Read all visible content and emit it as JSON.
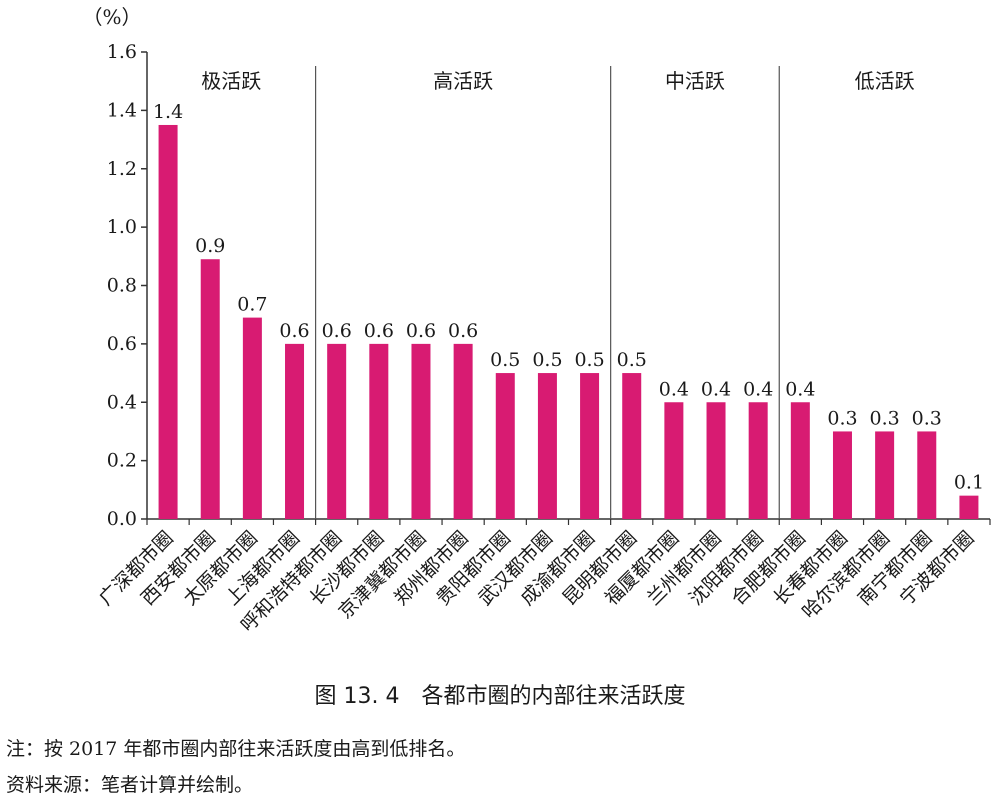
{
  "chart_data": {
    "type": "bar",
    "unit_label": "（%）",
    "ylim": [
      0,
      1.6
    ],
    "yticks": [
      "0.0",
      "0.2",
      "0.4",
      "0.6",
      "0.8",
      "1.0",
      "1.2",
      "1.4",
      "1.6"
    ],
    "categories": [
      "广深都市圈",
      "西安都市圈",
      "太原都市圈",
      "上海都市圈",
      "呼和浩特都市圈",
      "长沙都市圈",
      "京津冀都市圈",
      "郑州都市圈",
      "贵阳都市圈",
      "武汉都市圈",
      "成渝都市圈",
      "昆明都市圈",
      "福厦都市圈",
      "兰州都市圈",
      "沈阳都市圈",
      "合肥都市圈",
      "长春都市圈",
      "哈尔滨都市圈",
      "南宁都市圈",
      "宁波都市圈"
    ],
    "values": [
      1.35,
      0.89,
      0.69,
      0.6,
      0.6,
      0.6,
      0.6,
      0.6,
      0.5,
      0.5,
      0.5,
      0.5,
      0.4,
      0.4,
      0.4,
      0.4,
      0.3,
      0.3,
      0.3,
      0.08
    ],
    "data_labels": [
      "1.4",
      "0.9",
      "0.7",
      "0.6",
      "0.6",
      "0.6",
      "0.6",
      "0.6",
      "0.5",
      "0.5",
      "0.5",
      "0.5",
      "0.4",
      "0.4",
      "0.4",
      "0.4",
      "0.3",
      "0.3",
      "0.3",
      "0.1"
    ],
    "groups": [
      {
        "label": "极活跃",
        "from": 0,
        "to": 3
      },
      {
        "label": "高活跃",
        "from": 4,
        "to": 10
      },
      {
        "label": "中活跃",
        "from": 11,
        "to": 14
      },
      {
        "label": "低活跃",
        "from": 15,
        "to": 19
      }
    ],
    "bar_color": "#d81b72",
    "grid": false
  },
  "caption": "图 13. 4　各都市圈的内部往来活跃度",
  "notes": {
    "note": "注：按 2017 年都市圈内部往来活跃度由高到低排名。",
    "source": "资料来源：笔者计算并绘制。"
  }
}
